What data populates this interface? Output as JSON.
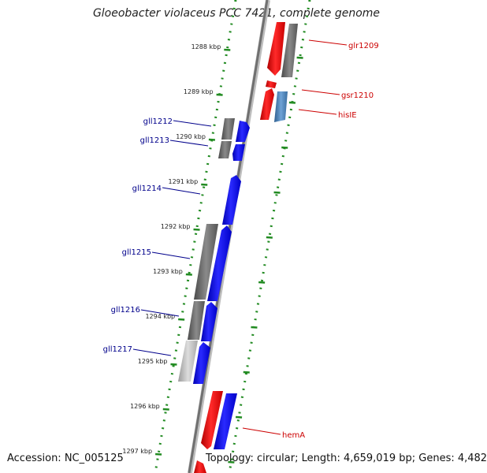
{
  "title": "Gloeobacter violaceus PCC 7421, complete genome",
  "footer": {
    "accession": "Accession: NC_005125",
    "info": "Topology: circular; Length: 4,659,019 bp; Genes: 4,482"
  },
  "ticks": [
    "1288 kbp",
    "1289 kbp",
    "1290 kbp",
    "1291 kbp",
    "1292 kbp",
    "1293 kbp",
    "1294 kbp",
    "1295 kbp",
    "1296 kbp",
    "1297 kbp"
  ],
  "genes": [
    {
      "label": "glr1209",
      "strand": "forward",
      "color": "#cc0000"
    },
    {
      "label": "gsr1210",
      "strand": "forward",
      "color": "#cc0000"
    },
    {
      "label": "hisIE",
      "strand": "forward",
      "color": "#cc0000"
    },
    {
      "label": "gll1212",
      "strand": "reverse",
      "color": "#00008b"
    },
    {
      "label": "gll1213",
      "strand": "reverse",
      "color": "#00008b"
    },
    {
      "label": "gll1214",
      "strand": "reverse",
      "color": "#00008b"
    },
    {
      "label": "gll1215",
      "strand": "reverse",
      "color": "#00008b"
    },
    {
      "label": "gll1216",
      "strand": "reverse",
      "color": "#00008b"
    },
    {
      "label": "gll1217",
      "strand": "reverse",
      "color": "#00008b"
    },
    {
      "label": "hemA",
      "strand": "forward",
      "color": "#cc0000"
    }
  ],
  "colors": {
    "forward_gene": "#ff0000",
    "reverse_gene": "#0000ee",
    "rna_gene": "#4682b4",
    "cds_block": "#666666",
    "track_dots": "#228b22",
    "backbone": "#7a7a7a"
  }
}
